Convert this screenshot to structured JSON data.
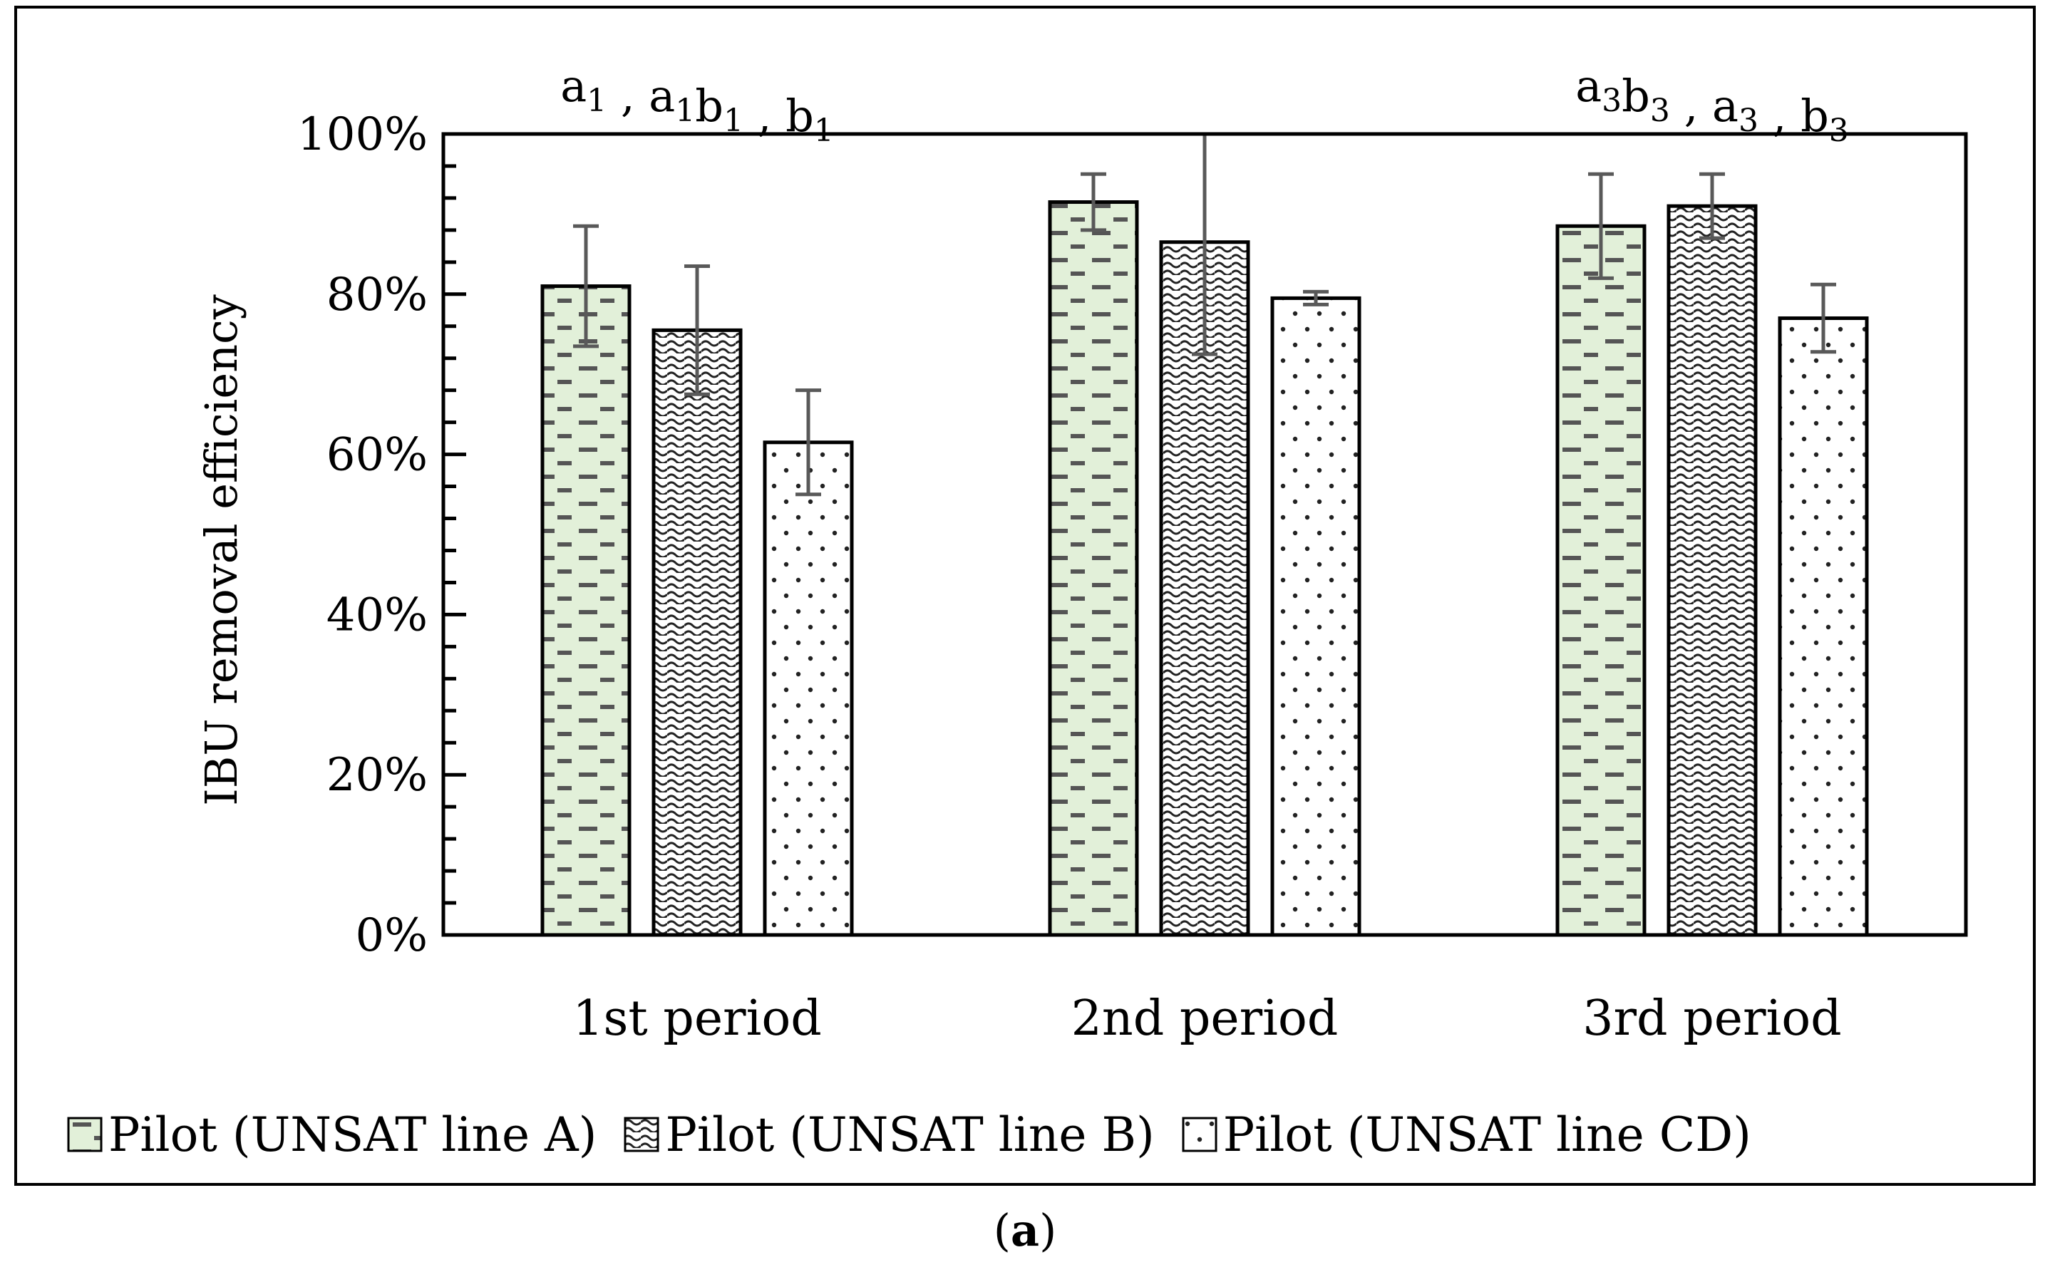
{
  "chart_data": {
    "type": "bar",
    "ylabel": "IBU removal efficiency",
    "xlabel": "",
    "ylim": [
      0,
      100
    ],
    "yticks": [
      "0%",
      "20%",
      "40%",
      "60%",
      "80%",
      "100%"
    ],
    "categories": [
      "1st period",
      "2nd period",
      "3rd period"
    ],
    "series": [
      {
        "name": "Pilot (UNSAT line A)",
        "pattern": "dash",
        "fill": "#e2f0d9",
        "values": [
          81,
          91.5,
          88.5
        ],
        "errors": [
          7.5,
          3.5,
          6.5
        ]
      },
      {
        "name": "Pilot (UNSAT line B)",
        "pattern": "wave",
        "fill": "#ffffff",
        "values": [
          75.5,
          86.5,
          91
        ],
        "errors": [
          8,
          14,
          4
        ]
      },
      {
        "name": "Pilot (UNSAT line CD)",
        "pattern": "dots",
        "fill": "#ffffff",
        "values": [
          61.5,
          79.5,
          77
        ],
        "errors": [
          6.5,
          0.8,
          4.2
        ]
      }
    ],
    "annotations": [
      {
        "category": "1st period",
        "parts": [
          [
            "a",
            "1"
          ],
          [
            " , ",
            ""
          ],
          [
            "a",
            "1"
          ],
          [
            "b",
            "1"
          ],
          [
            " , ",
            ""
          ],
          [
            "b",
            "1"
          ]
        ]
      },
      {
        "category": "3rd period",
        "parts": [
          [
            "a",
            "3"
          ],
          [
            "b",
            "3"
          ],
          [
            " , ",
            ""
          ],
          [
            "a",
            "3"
          ],
          [
            "  ,  ",
            ""
          ],
          [
            "b",
            "3"
          ]
        ]
      }
    ],
    "annotation_text": [
      "a1 , a1b1 , b1",
      "a3b3 , a3  ,  b3"
    ],
    "legend_position": "bottom",
    "colors": {
      "error_bar": "#595959",
      "axis": "#000000",
      "dash": "#555555"
    }
  },
  "caption": {
    "open": "(",
    "label": "a",
    "close": ")"
  }
}
